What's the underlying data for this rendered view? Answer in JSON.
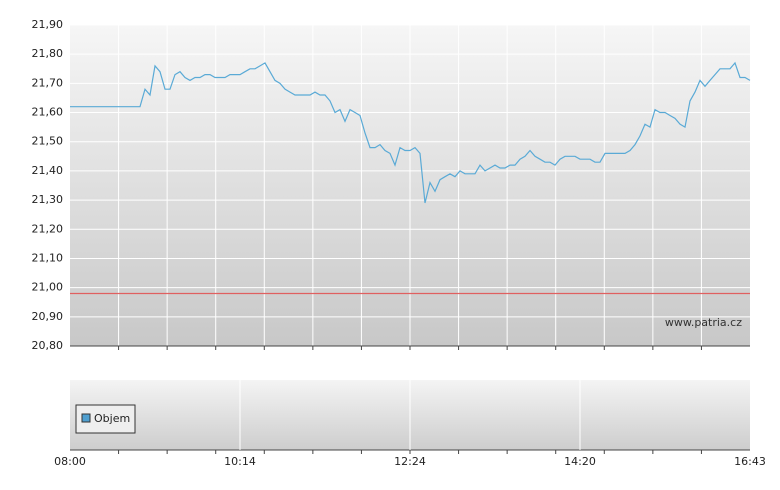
{
  "chart_data": {
    "type": "line",
    "watermark": "www.patria.cz",
    "series": [
      {
        "color": "#5aaad6",
        "values": [
          21.62,
          21.62,
          21.62,
          21.62,
          21.62,
          21.62,
          21.62,
          21.62,
          21.62,
          21.62,
          21.62,
          21.62,
          21.62,
          21.62,
          21.62,
          21.68,
          21.66,
          21.76,
          21.74,
          21.68,
          21.68,
          21.73,
          21.74,
          21.72,
          21.71,
          21.72,
          21.72,
          21.73,
          21.73,
          21.72,
          21.72,
          21.72,
          21.73,
          21.73,
          21.73,
          21.74,
          21.75,
          21.75,
          21.76,
          21.77,
          21.74,
          21.71,
          21.7,
          21.68,
          21.67,
          21.66,
          21.66,
          21.66,
          21.66,
          21.67,
          21.66,
          21.66,
          21.64,
          21.6,
          21.61,
          21.57,
          21.61,
          21.6,
          21.59,
          21.53,
          21.48,
          21.48,
          21.49,
          21.47,
          21.46,
          21.42,
          21.48,
          21.47,
          21.47,
          21.48,
          21.46,
          21.29,
          21.36,
          21.33,
          21.37,
          21.38,
          21.39,
          21.38,
          21.4,
          21.39,
          21.39,
          21.39,
          21.42,
          21.4,
          21.41,
          21.42,
          21.41,
          21.41,
          21.42,
          21.42,
          21.44,
          21.45,
          21.47,
          21.45,
          21.44,
          21.43,
          21.43,
          21.42,
          21.44,
          21.45,
          21.45,
          21.45,
          21.44,
          21.44,
          21.44,
          21.43,
          21.43,
          21.46,
          21.46,
          21.46,
          21.46,
          21.46,
          21.47,
          21.49,
          21.52,
          21.56,
          21.55,
          21.61,
          21.6,
          21.6,
          21.59,
          21.58,
          21.56,
          21.55,
          21.64,
          21.67,
          21.71,
          21.69,
          21.71,
          21.73,
          21.75,
          21.75,
          21.75,
          21.77,
          21.72,
          21.72,
          21.71
        ]
      }
    ],
    "reference_line": {
      "value": 20.98,
      "color": "#e06060"
    },
    "ylim": [
      20.8,
      21.9
    ],
    "yticks": [
      {
        "value": 20.8,
        "label": "20,80"
      },
      {
        "value": 20.9,
        "label": "20,90"
      },
      {
        "value": 21.0,
        "label": "21,00"
      },
      {
        "value": 21.1,
        "label": "21,10"
      },
      {
        "value": 21.2,
        "label": "21,20"
      },
      {
        "value": 21.3,
        "label": "21,30"
      },
      {
        "value": 21.4,
        "label": "21,40"
      },
      {
        "value": 21.5,
        "label": "21,50"
      },
      {
        "value": 21.6,
        "label": "21,60"
      },
      {
        "value": 21.7,
        "label": "21,70"
      },
      {
        "value": 21.8,
        "label": "21,80"
      },
      {
        "value": 21.9,
        "label": "21,90"
      }
    ],
    "x_labels": [
      "08:00",
      "10:14",
      "12:24",
      "14:20",
      "16:43"
    ],
    "grid": true,
    "volume_legend": {
      "name": "Objem",
      "color": "#4f9fd0"
    }
  }
}
